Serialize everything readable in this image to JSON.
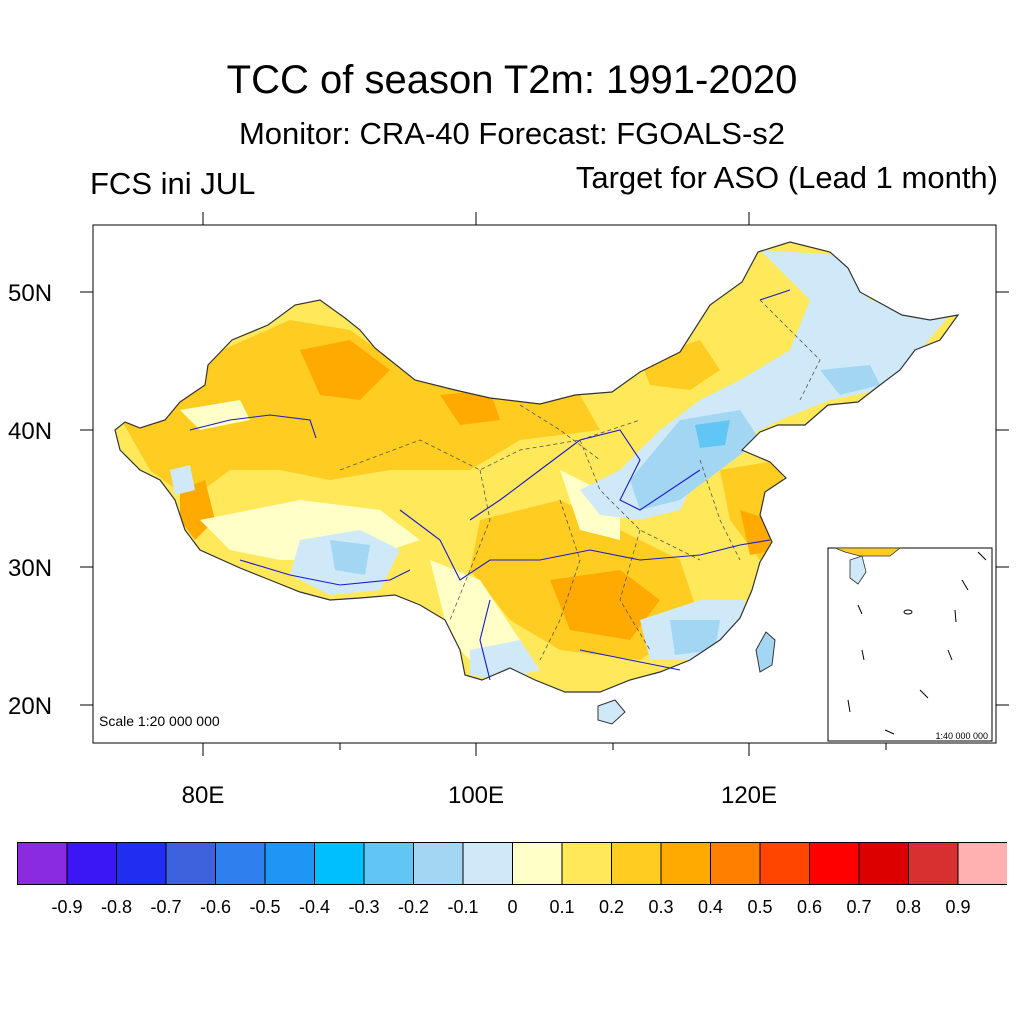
{
  "header": {
    "title": "TCC of season T2m: 1991-2020",
    "subtitle": "Monitor: CRA-40   Forecast: FGOALS-s2",
    "left_label": "FCS ini JUL",
    "right_label": "Target for ASO (Lead 1 month)"
  },
  "map": {
    "lat_labels": [
      "50N",
      "40N",
      "30N",
      "20N"
    ],
    "lon_labels": [
      "80E",
      "100E",
      "120E"
    ],
    "scale_label": "Scale 1:20 000 000",
    "inset_scale_label": "1:40 000 000",
    "colors": {
      "border": "#333333",
      "river": "#1a1acc",
      "province": "#555555"
    }
  },
  "legend": {
    "colors": [
      "#8a2be2",
      "#3b17f5",
      "#1f2ef0",
      "#3e62de",
      "#2f80ee",
      "#1e96f5",
      "#00bfff",
      "#62c6f4",
      "#a2d6f3",
      "#cfe9f8",
      "#ffffc8",
      "#ffe85a",
      "#ffcc22",
      "#ffaa00",
      "#ff8000",
      "#ff4500",
      "#ff0000",
      "#dd0000",
      "#d83030",
      "#ffb0b0"
    ],
    "labels": [
      "-0.9",
      "-0.8",
      "-0.7",
      "-0.6",
      "-0.5",
      "-0.4",
      "-0.3",
      "-0.2",
      "-0.1",
      "0",
      "0.1",
      "0.2",
      "0.3",
      "0.4",
      "0.5",
      "0.6",
      "0.7",
      "0.8",
      "0.9"
    ]
  }
}
